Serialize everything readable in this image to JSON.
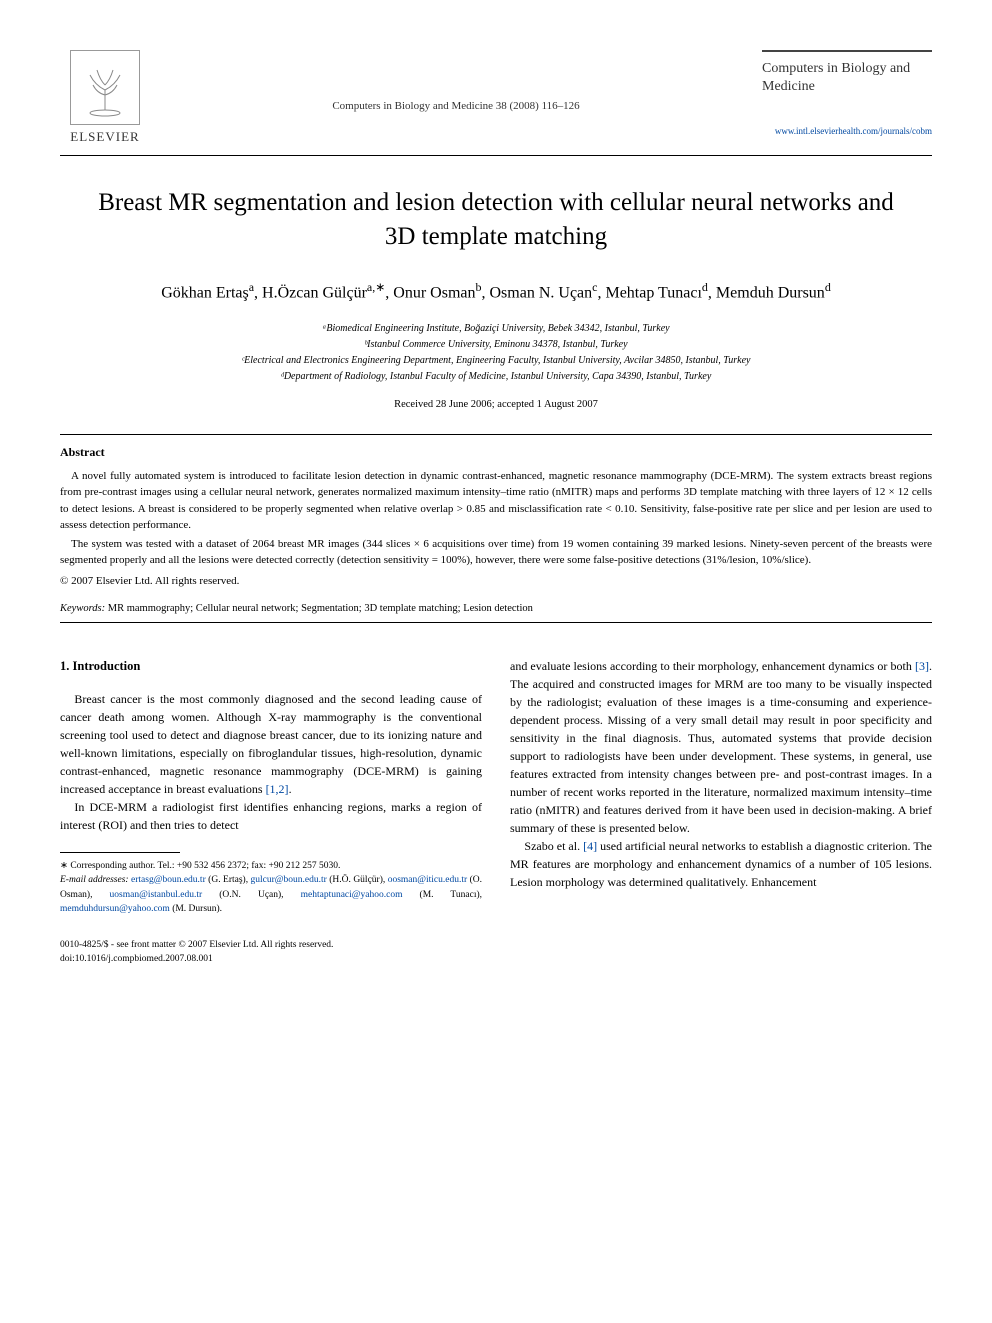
{
  "header": {
    "publisher_name": "ELSEVIER",
    "journal_ref": "Computers in Biology and Medicine 38 (2008) 116–126",
    "journal_title": "Computers in Biology and Medicine",
    "journal_url": "www.intl.elsevierhealth.com/journals/cobm"
  },
  "title": "Breast MR segmentation and lesion detection with cellular neural networks and 3D template matching",
  "authors_html": "Gökhan Ertaş<sup>a</sup>, H.Özcan Gülçür<sup>a,∗</sup>, Onur Osman<sup>b</sup>, Osman N. Uçan<sup>c</sup>, Mehtap Tunacı<sup>d</sup>, Memduh Dursun<sup>d</sup>",
  "affiliations": [
    "ᵃBiomedical Engineering Institute, Boğaziçi University, Bebek 34342, Istanbul, Turkey",
    "ᵇIstanbul Commerce University, Eminonu 34378, Istanbul, Turkey",
    "ᶜElectrical and Electronics Engineering Department, Engineering Faculty, Istanbul University, Avcilar 34850, Istanbul, Turkey",
    "ᵈDepartment of Radiology, Istanbul Faculty of Medicine, Istanbul University, Capa 34390, Istanbul, Turkey"
  ],
  "dates": "Received 28 June 2006; accepted 1 August 2007",
  "abstract": {
    "label": "Abstract",
    "paragraphs": [
      "A novel fully automated system is introduced to facilitate lesion detection in dynamic contrast-enhanced, magnetic resonance mammography (DCE-MRM). The system extracts breast regions from pre-contrast images using a cellular neural network, generates normalized maximum intensity–time ratio (nMITR) maps and performs 3D template matching with three layers of 12 × 12 cells to detect lesions. A breast is considered to be properly segmented when relative overlap > 0.85 and misclassification rate < 0.10. Sensitivity, false-positive rate per slice and per lesion are used to assess detection performance.",
      "The system was tested with a dataset of 2064 breast MR images (344 slices × 6 acquisitions over time) from 19 women containing 39 marked lesions. Ninety-seven percent of the breasts were segmented properly and all the lesions were detected correctly (detection sensitivity = 100%), however, there were some false-positive detections (31%/lesion, 10%/slice)."
    ],
    "copyright": "© 2007 Elsevier Ltd. All rights reserved."
  },
  "keywords": {
    "label": "Keywords:",
    "text": "MR mammography; Cellular neural network; Segmentation; 3D template matching; Lesion detection"
  },
  "body": {
    "section_heading": "1. Introduction",
    "left_paragraphs": [
      "Breast cancer is the most commonly diagnosed and the second leading cause of cancer death among women. Although X-ray mammography is the conventional screening tool used to detect and diagnose breast cancer, due to its ionizing nature and well-known limitations, especially on fibroglandular tissues, high-resolution, dynamic contrast-enhanced, magnetic resonance mammography (DCE-MRM) is gaining increased acceptance in breast evaluations [1,2].",
      "In DCE-MRM a radiologist first identifies enhancing regions, marks a region of interest (ROI) and then tries to detect"
    ],
    "right_paragraphs": [
      "and evaluate lesions according to their morphology, enhancement dynamics or both [3]. The acquired and constructed images for MRM are too many to be visually inspected by the radiologist; evaluation of these images is a time-consuming and experience-dependent process. Missing of a very small detail may result in poor specificity and sensitivity in the final diagnosis. Thus, automated systems that provide decision support to radiologists have been under development. These systems, in general, use features extracted from intensity changes between pre- and post-contrast images. In a number of recent works reported in the literature, normalized maximum intensity–time ratio (nMITR) and features derived from it have been used in decision-making. A brief summary of these is presented below.",
      "Szabo et al. [4] used artificial neural networks to establish a diagnostic criterion. The MR features are morphology and enhancement dynamics of a number of 105 lesions. Lesion morphology was determined qualitatively. Enhancement"
    ]
  },
  "footnotes": {
    "corresponding": "∗ Corresponding author. Tel.: +90 532 456 2372; fax: +90 212 257 5030.",
    "email_label": "E-mail addresses:",
    "emails": [
      {
        "addr": "ertasg@boun.edu.tr",
        "who": "(G. Ertaş),"
      },
      {
        "addr": "gulcur@boun.edu.tr",
        "who": "(H.Ö. Gülçür),"
      },
      {
        "addr": "oosman@iticu.edu.tr",
        "who": "(O. Osman),"
      },
      {
        "addr": "uosman@istanbul.edu.tr",
        "who": "(O.N. Uçan),"
      },
      {
        "addr": "mehtaptunaci@yahoo.com",
        "who": "(M. Tunacı),"
      },
      {
        "addr": "memduhdursun@yahoo.com",
        "who": "(M. Dursun)."
      }
    ]
  },
  "footer": {
    "line1": "0010-4825/$ - see front matter © 2007 Elsevier Ltd. All rights reserved.",
    "line2": "doi:10.1016/j.compbiomed.2007.08.001"
  },
  "colors": {
    "link": "#0048a1",
    "text": "#000000",
    "background": "#ffffff"
  }
}
